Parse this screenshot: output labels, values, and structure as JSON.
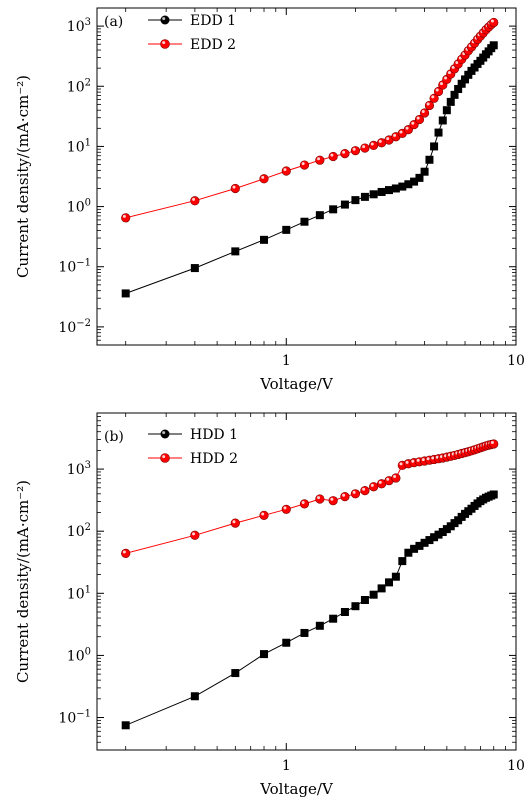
{
  "chart_data": [
    {
      "type": "scatter",
      "panel_label": "(a)",
      "xlabel": "Voltage/V",
      "ylabel": "Current density/(mA·cm⁻²)",
      "xscale": "log",
      "yscale": "log",
      "xlim": [
        0.15,
        10
      ],
      "ylim": [
        0.005,
        2000
      ],
      "x_ticks": [
        {
          "v": 1,
          "label": "1"
        },
        {
          "v": 10,
          "label": "10"
        }
      ],
      "y_ticks": [
        {
          "v": 0.01,
          "base": "10",
          "exp": "−2"
        },
        {
          "v": 0.1,
          "base": "10",
          "exp": "−1"
        },
        {
          "v": 1,
          "base": "10",
          "exp": "0"
        },
        {
          "v": 10,
          "base": "10",
          "exp": "1"
        },
        {
          "v": 100,
          "base": "10",
          "exp": "2"
        },
        {
          "v": 1000,
          "base": "10",
          "exp": "3"
        }
      ],
      "legend_position": "top-left",
      "series": [
        {
          "name": "EDD 1",
          "color": "#000000",
          "marker": "square",
          "x": [
            0.2,
            0.4,
            0.6,
            0.8,
            1.0,
            1.2,
            1.4,
            1.6,
            1.8,
            2.0,
            2.2,
            2.4,
            2.6,
            2.8,
            3.0,
            3.2,
            3.4,
            3.6,
            3.8,
            4.0,
            4.2,
            4.4,
            4.6,
            4.8,
            5.0,
            5.2,
            5.4,
            5.6,
            5.8,
            6.0,
            6.2,
            6.4,
            6.6,
            6.8,
            7.0,
            7.2,
            7.4,
            7.6,
            7.8,
            8.0
          ],
          "y": [
            0.036,
            0.095,
            0.18,
            0.28,
            0.41,
            0.56,
            0.72,
            0.9,
            1.08,
            1.28,
            1.45,
            1.6,
            1.75,
            1.88,
            2.0,
            2.15,
            2.35,
            2.6,
            3.0,
            3.8,
            6.0,
            10,
            17,
            27,
            40,
            55,
            72,
            90,
            110,
            130,
            155,
            180,
            205,
            235,
            265,
            300,
            340,
            380,
            430,
            480
          ]
        },
        {
          "name": "EDD 2",
          "color": "#ff0000",
          "marker": "circle",
          "x": [
            0.2,
            0.4,
            0.6,
            0.8,
            1.0,
            1.2,
            1.4,
            1.6,
            1.8,
            2.0,
            2.2,
            2.4,
            2.6,
            2.8,
            3.0,
            3.2,
            3.4,
            3.6,
            3.8,
            4.0,
            4.2,
            4.4,
            4.6,
            4.8,
            5.0,
            5.2,
            5.4,
            5.6,
            5.8,
            6.0,
            6.2,
            6.4,
            6.6,
            6.8,
            7.0,
            7.2,
            7.4,
            7.6,
            7.8,
            8.0
          ],
          "y": [
            0.65,
            1.25,
            2.0,
            2.9,
            3.9,
            4.9,
            5.9,
            6.8,
            7.6,
            8.5,
            9.4,
            10.4,
            11.5,
            12.8,
            14.5,
            16.5,
            19,
            23,
            28,
            36,
            48,
            63,
            82,
            105,
            130,
            160,
            195,
            235,
            280,
            330,
            390,
            450,
            520,
            600,
            680,
            770,
            870,
            960,
            1060,
            1150
          ]
        }
      ]
    },
    {
      "type": "scatter",
      "panel_label": "(b)",
      "xlabel": "Voltage/V",
      "ylabel": "Current density/(mA·cm⁻²)",
      "xscale": "log",
      "yscale": "log",
      "xlim": [
        0.15,
        10
      ],
      "ylim": [
        0.03,
        8000
      ],
      "x_ticks": [
        {
          "v": 1,
          "label": "1"
        },
        {
          "v": 10,
          "label": "10"
        }
      ],
      "y_ticks": [
        {
          "v": 0.1,
          "base": "10",
          "exp": "−1"
        },
        {
          "v": 1,
          "base": "10",
          "exp": "0"
        },
        {
          "v": 10,
          "base": "10",
          "exp": "1"
        },
        {
          "v": 100,
          "base": "10",
          "exp": "2"
        },
        {
          "v": 1000,
          "base": "10",
          "exp": "3"
        }
      ],
      "legend_position": "top-left",
      "series": [
        {
          "name": "HDD 1",
          "color": "#000000",
          "marker": "square",
          "x": [
            0.2,
            0.4,
            0.6,
            0.8,
            1.0,
            1.2,
            1.4,
            1.6,
            1.8,
            2.0,
            2.2,
            2.4,
            2.6,
            2.8,
            3.0,
            3.2,
            3.4,
            3.6,
            3.8,
            4.0,
            4.2,
            4.4,
            4.6,
            4.8,
            5.0,
            5.2,
            5.4,
            5.6,
            5.8,
            6.0,
            6.2,
            6.4,
            6.6,
            6.8,
            7.0,
            7.2,
            7.4,
            7.6,
            7.8,
            8.0
          ],
          "y": [
            0.075,
            0.22,
            0.52,
            1.05,
            1.6,
            2.3,
            3.0,
            3.9,
            5.0,
            6.2,
            7.8,
            9.5,
            12,
            15,
            18.5,
            33,
            45,
            52,
            58,
            65,
            72,
            80,
            88,
            97,
            108,
            120,
            135,
            150,
            170,
            190,
            210,
            230,
            255,
            280,
            305,
            325,
            345,
            360,
            375,
            390
          ]
        },
        {
          "name": "HDD 2",
          "color": "#ff0000",
          "marker": "circle",
          "x": [
            0.2,
            0.4,
            0.6,
            0.8,
            1.0,
            1.2,
            1.4,
            1.6,
            1.8,
            2.0,
            2.2,
            2.4,
            2.6,
            2.8,
            3.0,
            3.2,
            3.4,
            3.6,
            3.8,
            4.0,
            4.2,
            4.4,
            4.6,
            4.8,
            5.0,
            5.2,
            5.4,
            5.6,
            5.8,
            6.0,
            6.2,
            6.4,
            6.6,
            6.8,
            7.0,
            7.2,
            7.4,
            7.6,
            7.8,
            8.0
          ],
          "y": [
            44,
            86,
            135,
            180,
            225,
            275,
            330,
            310,
            360,
            400,
            450,
            520,
            580,
            650,
            720,
            1150,
            1220,
            1270,
            1310,
            1350,
            1390,
            1430,
            1470,
            1510,
            1560,
            1610,
            1660,
            1720,
            1780,
            1840,
            1900,
            1970,
            2040,
            2120,
            2200,
            2280,
            2360,
            2430,
            2490,
            2540
          ]
        }
      ]
    }
  ]
}
